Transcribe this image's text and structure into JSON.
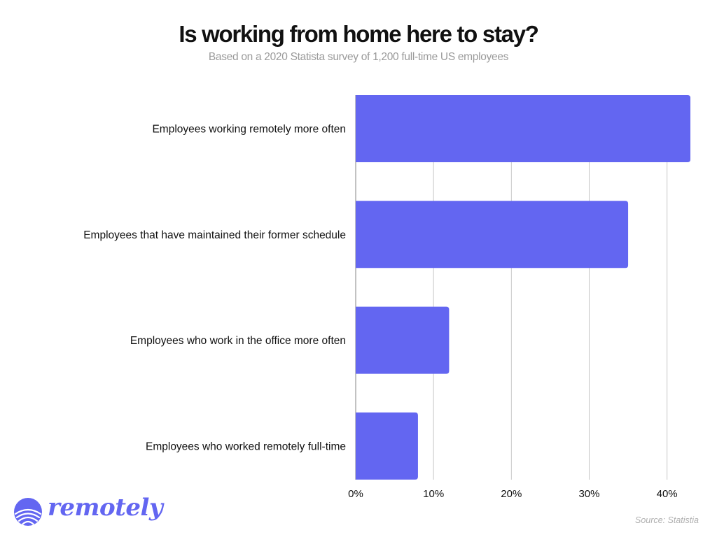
{
  "header": {
    "title": "Is working from home here to stay?",
    "subtitle": "Based on a 2020 Statista survey of 1,200 full-time US employees"
  },
  "chart_data": {
    "type": "bar",
    "orientation": "horizontal",
    "categories": [
      "Employees working remotely more often",
      "Employees that have maintained their former schedule",
      "Employees who work in the office more often",
      "Employees who worked remotely full-time"
    ],
    "values": [
      43,
      35,
      12,
      8
    ],
    "unit": "%",
    "xlim": [
      0,
      43
    ],
    "xticks": [
      0,
      10,
      20,
      30,
      40
    ],
    "xtick_labels": [
      "0%",
      "10%",
      "20%",
      "30%",
      "40%"
    ],
    "grid": "vertical",
    "bar_color": "#6366f1",
    "title": "Is working from home here to stay?",
    "subtitle": "Based on a 2020 Statista survey of 1,200 full-time US employees",
    "xlabel": "",
    "ylabel": ""
  },
  "brand": {
    "logo_text": "remotely",
    "logo_icon": "striped-globe-icon",
    "color": "#6366f1"
  },
  "footer": {
    "source": "Source: Statistia"
  }
}
